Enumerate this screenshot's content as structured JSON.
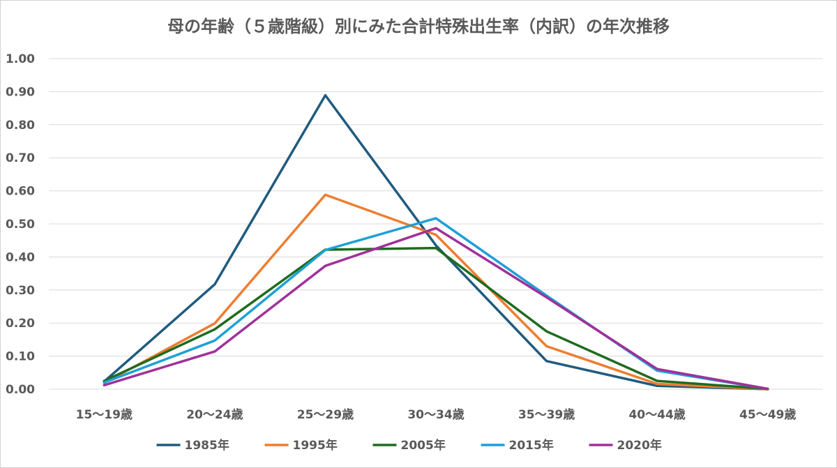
{
  "chart_data": {
    "type": "line",
    "title": "母の年齢（５歳階級）別にみた合計特殊出生率（内訳）の年次推移",
    "xlabel": "",
    "ylabel": "",
    "categories": [
      "15〜19歳",
      "20〜24歳",
      "25〜29歳",
      "30〜34歳",
      "35〜39歳",
      "40〜44歳",
      "45〜49歳"
    ],
    "y_ticks": [
      "0.00",
      "0.10",
      "0.20",
      "0.30",
      "0.40",
      "0.50",
      "0.60",
      "0.70",
      "0.80",
      "0.90",
      "1.00"
    ],
    "ylim": [
      0,
      1.0
    ],
    "grid": true,
    "legend_position": "bottom",
    "series": [
      {
        "name": "1985年",
        "color": "#1f5b7f",
        "values": [
          0.023,
          0.317,
          0.889,
          0.435,
          0.085,
          0.01,
          0.0
        ]
      },
      {
        "name": "1995年",
        "color": "#ed7d31",
        "values": [
          0.019,
          0.199,
          0.588,
          0.467,
          0.13,
          0.016,
          0.0
        ]
      },
      {
        "name": "2005年",
        "color": "#1e6b1e",
        "values": [
          0.025,
          0.181,
          0.422,
          0.427,
          0.175,
          0.025,
          0.001
        ]
      },
      {
        "name": "2015年",
        "color": "#1ea0d6",
        "values": [
          0.02,
          0.147,
          0.421,
          0.517,
          0.283,
          0.056,
          0.001
        ]
      },
      {
        "name": "2020年",
        "color": "#a0309a",
        "values": [
          0.012,
          0.114,
          0.373,
          0.487,
          0.278,
          0.061,
          0.001
        ]
      }
    ]
  }
}
